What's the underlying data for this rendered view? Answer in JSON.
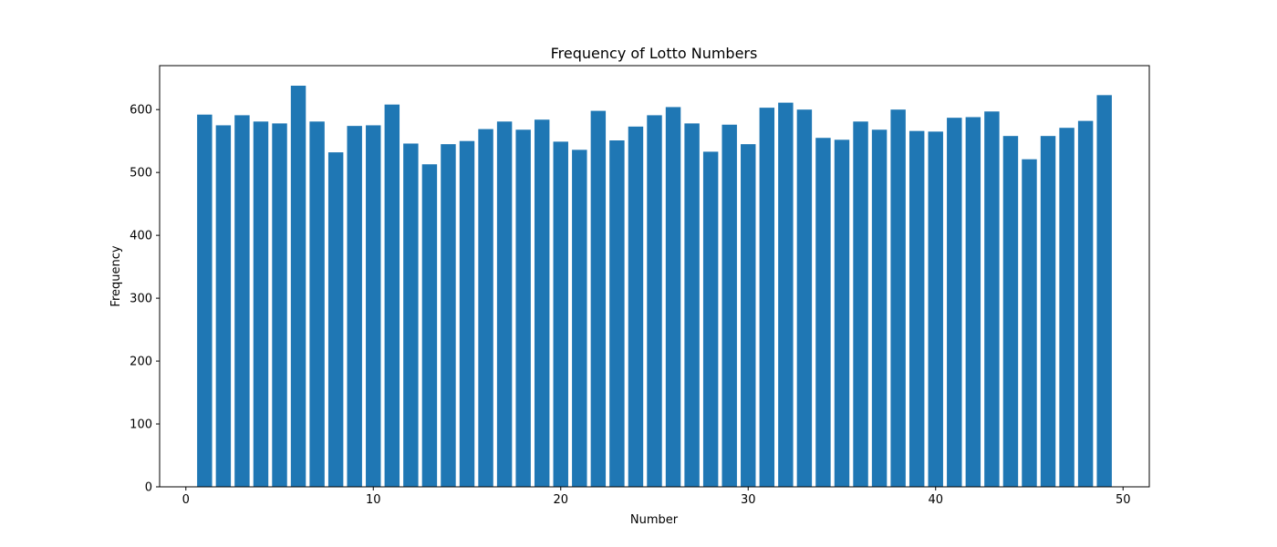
{
  "chart_data": {
    "type": "bar",
    "title": "Frequency of Lotto Numbers",
    "xlabel": "Number",
    "ylabel": "Frequency",
    "x": [
      1,
      2,
      3,
      4,
      5,
      6,
      7,
      8,
      9,
      10,
      11,
      12,
      13,
      14,
      15,
      16,
      17,
      18,
      19,
      20,
      21,
      22,
      23,
      24,
      25,
      26,
      27,
      28,
      29,
      30,
      31,
      32,
      33,
      34,
      35,
      36,
      37,
      38,
      39,
      40,
      41,
      42,
      43,
      44,
      45,
      46,
      47,
      48,
      49
    ],
    "values": [
      592,
      575,
      591,
      581,
      578,
      638,
      581,
      532,
      574,
      575,
      608,
      546,
      513,
      545,
      550,
      569,
      581,
      568,
      584,
      549,
      536,
      598,
      551,
      573,
      591,
      604,
      578,
      533,
      576,
      545,
      603,
      611,
      600,
      555,
      552,
      581,
      568,
      600,
      566,
      565,
      587,
      588,
      597,
      558,
      521,
      558,
      571,
      582,
      623
    ],
    "xlim": [
      -1.4,
      51.4
    ],
    "ylim": [
      0,
      669.9
    ],
    "x_ticks": [
      0,
      10,
      20,
      30,
      40,
      50
    ],
    "y_ticks": [
      0,
      100,
      200,
      300,
      400,
      500,
      600
    ],
    "bar_color": "#1f77b4",
    "grid": false
  }
}
